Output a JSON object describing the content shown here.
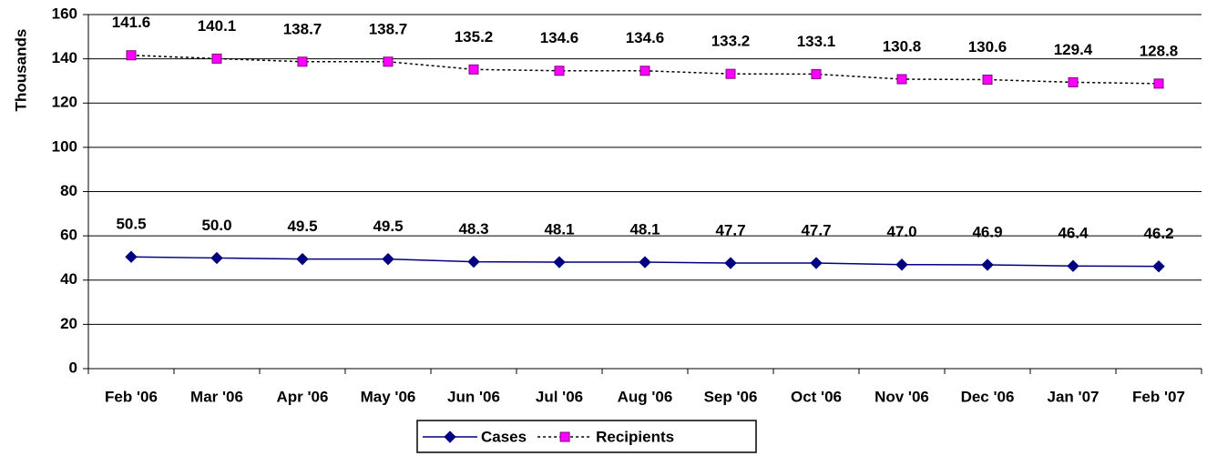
{
  "chart_data": {
    "type": "line",
    "y_label": "Thousands",
    "categories": [
      "Feb '06",
      "Mar '06",
      "Apr '06",
      "May '06",
      "Jun '06",
      "Jul '06",
      "Aug '06",
      "Sep '06",
      "Oct '06",
      "Nov '06",
      "Dec '06",
      "Jan '07",
      "Feb '07"
    ],
    "series": [
      {
        "name": "Cases",
        "color": "#000080",
        "marker": "diamond",
        "line": "solid",
        "values": [
          50.5,
          50.0,
          49.5,
          49.5,
          48.3,
          48.1,
          48.1,
          47.7,
          47.7,
          47.0,
          46.9,
          46.4,
          46.2
        ],
        "value_labels": [
          "50.5",
          "50.0",
          "49.5",
          "49.5",
          "48.3",
          "48.1",
          "48.1",
          "47.7",
          "47.7",
          "47.0",
          "46.9",
          "46.4",
          "46.2"
        ]
      },
      {
        "name": "Recipients",
        "color": "#ff00ff",
        "marker": "square",
        "line": "dotted",
        "values": [
          141.6,
          140.1,
          138.7,
          138.7,
          135.2,
          134.6,
          134.6,
          133.2,
          133.1,
          130.8,
          130.6,
          129.4,
          128.8
        ],
        "value_labels": [
          "141.6",
          "140.1",
          "138.7",
          "138.7",
          "135.2",
          "134.6",
          "134.6",
          "133.2",
          "133.1",
          "130.8",
          "130.6",
          "129.4",
          "128.8"
        ]
      }
    ],
    "ylim": [
      0,
      160
    ],
    "yticks": [
      0,
      20,
      40,
      60,
      80,
      100,
      120,
      140,
      160
    ],
    "grid": true,
    "legend": "bottom"
  }
}
